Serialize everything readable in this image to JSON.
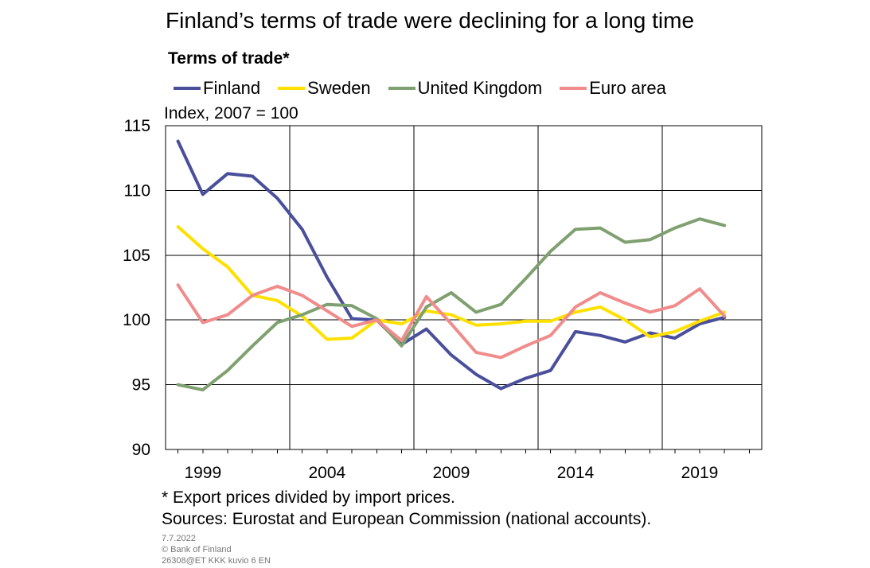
{
  "chart_data": {
    "type": "line",
    "title": "Finland’s terms of trade were declining for a long time",
    "subtitle": "Terms of trade*",
    "unit_label": "Index, 2007 = 100",
    "x": [
      1998,
      1999,
      2000,
      2001,
      2002,
      2003,
      2004,
      2005,
      2006,
      2007,
      2008,
      2009,
      2010,
      2011,
      2012,
      2013,
      2014,
      2015,
      2016,
      2017,
      2018,
      2019,
      2020,
      2021
    ],
    "xlim": [
      1997.5,
      2021.5
    ],
    "x_ticks": [
      1999,
      2004,
      2009,
      2014,
      2019
    ],
    "x_tick_labels": [
      "1999",
      "2004",
      "2009",
      "2014",
      "2019"
    ],
    "x_gridlines": [
      2002.5,
      2007.5,
      2012.5,
      2017.5
    ],
    "ylim": [
      90,
      115
    ],
    "y_ticks": [
      90,
      95,
      100,
      105,
      110,
      115
    ],
    "y_tick_labels": [
      "90",
      "95",
      "100",
      "105",
      "110",
      "115"
    ],
    "grid": true,
    "legend_position": "top",
    "series": [
      {
        "name": "Finland",
        "color": "#4a4f9c",
        "values": [
          113.8,
          109.7,
          111.3,
          111.1,
          109.4,
          107.0,
          103.3,
          100.1,
          100.0,
          98.1,
          99.3,
          97.3,
          95.8,
          94.7,
          95.5,
          96.1,
          99.1,
          98.8,
          98.3,
          99.0,
          98.6,
          99.7,
          100.2,
          null
        ]
      },
      {
        "name": "Sweden",
        "color": "#ffe000",
        "values": [
          107.2,
          105.5,
          104.1,
          101.9,
          101.5,
          100.3,
          98.5,
          98.6,
          100.0,
          99.7,
          100.7,
          100.4,
          99.6,
          99.7,
          99.9,
          99.9,
          100.6,
          101.0,
          100.0,
          98.7,
          99.1,
          99.9,
          100.6,
          null
        ]
      },
      {
        "name": "United Kingdom",
        "color": "#7fa070",
        "values": [
          95.0,
          94.6,
          96.1,
          98.0,
          99.8,
          100.4,
          101.2,
          101.1,
          100.1,
          98.0,
          101.0,
          102.1,
          100.6,
          101.2,
          103.2,
          105.3,
          107.0,
          107.1,
          106.0,
          106.2,
          107.1,
          107.8,
          107.3,
          null
        ]
      },
      {
        "name": "Euro area",
        "color": "#f08c8c",
        "values": [
          102.7,
          99.8,
          100.4,
          101.9,
          102.6,
          101.9,
          100.7,
          99.5,
          100.0,
          98.4,
          101.8,
          99.7,
          97.5,
          97.1,
          98.0,
          98.8,
          101.0,
          102.1,
          101.3,
          100.6,
          101.1,
          102.4,
          100.3,
          null
        ]
      }
    ]
  },
  "footnote": "* Export prices divided by import prices.",
  "sources": "Sources: Eurostat and European Commission (national accounts).",
  "meta": {
    "date": "7.7.2022",
    "copyright": "© Bank of Finland",
    "code": "26308@ET KKK kuvio 6 EN"
  }
}
